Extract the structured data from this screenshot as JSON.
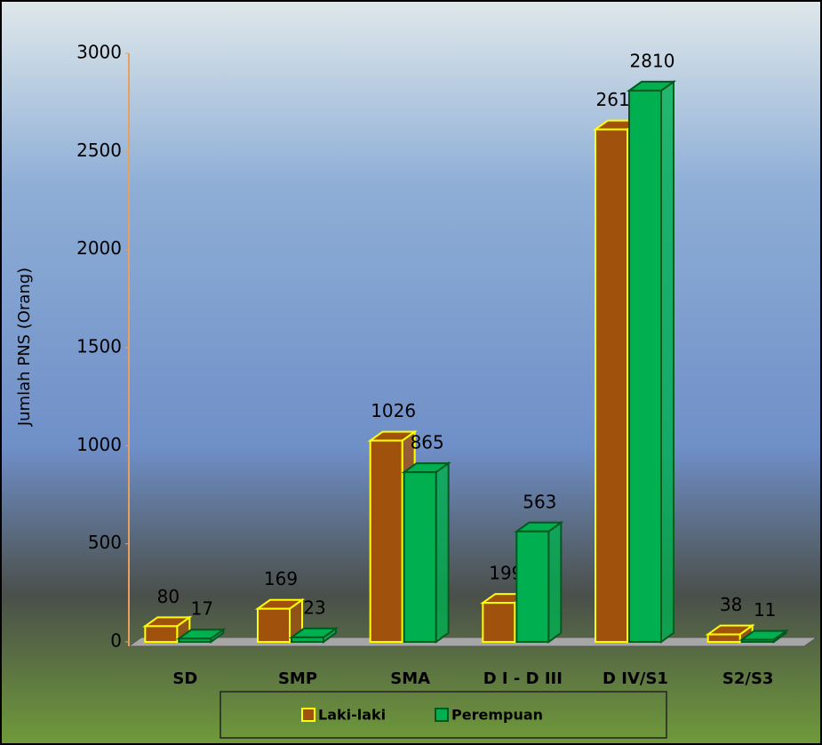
{
  "chart_data": {
    "type": "bar3d",
    "ylabel": "Jumlah PNS (Orang)",
    "categories": [
      "SD",
      "SMP",
      "SMA",
      "D I - D III",
      "D IV/S1",
      "S2/S3"
    ],
    "series": [
      {
        "name": "Laki-laki",
        "color": "#a0520c",
        "edgecolor": "#ffff00",
        "values": [
          80,
          169,
          1026,
          199,
          2612,
          38
        ]
      },
      {
        "name": "Perempuan",
        "color": "#00b050",
        "edgecolor": "#005a20",
        "values": [
          17,
          23,
          865,
          563,
          2810,
          11
        ]
      }
    ],
    "ylim": [
      0,
      3000
    ],
    "yticks": [
      0,
      500,
      1000,
      1500,
      2000,
      2500,
      3000
    ]
  }
}
